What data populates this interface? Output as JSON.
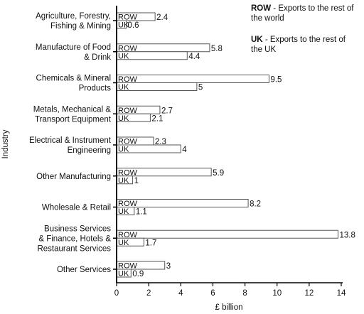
{
  "chart_data": {
    "type": "bar",
    "orientation": "horizontal",
    "categories": [
      [
        "Agriculture, Forestry,",
        "Fishing & Mining"
      ],
      [
        "Manufacture of Food",
        "& Drink"
      ],
      [
        "Chemicals & Mineral",
        "Products"
      ],
      [
        "Metals, Mechanical &",
        "Transport Equipment"
      ],
      [
        "Electrical & Instrument",
        "Engineering"
      ],
      [
        "Other Manufacturing"
      ],
      [
        "Wholesale & Retail"
      ],
      [
        "Business Services",
        "& Finance, Hotels &",
        "Restaurant Services"
      ],
      [
        "Other Services"
      ]
    ],
    "series": [
      {
        "name": "ROW",
        "values": [
          2.4,
          5.8,
          9.5,
          2.7,
          2.3,
          5.9,
          8.2,
          13.8,
          3
        ],
        "labels": [
          "2.4",
          "5.8",
          "9.5",
          "2.7",
          "2.3",
          "5.9",
          "8.2",
          "13.8",
          "3"
        ]
      },
      {
        "name": "UK",
        "values": [
          0.6,
          4.4,
          5,
          2.1,
          4,
          1,
          1.1,
          1.7,
          0.9
        ],
        "labels": [
          "0.6",
          "4.4",
          "5",
          "2.1",
          "4",
          "1",
          "1.1",
          "1.7",
          "0.9"
        ]
      }
    ],
    "xlabel": "£ billion",
    "ylabel": "Industry",
    "xlim": [
      0,
      14
    ],
    "xticks": [
      "0",
      "2",
      "4",
      "6",
      "8",
      "10",
      "12",
      "14"
    ],
    "grid": false,
    "legend": {
      "placement": "top-right",
      "entries": [
        {
          "key": "ROW",
          "desc": " - Exports to the rest of",
          "desc2": "the world"
        },
        {
          "key": "UK",
          "desc": " - Exports to the rest of",
          "desc2": "the UK"
        }
      ]
    },
    "colors": {
      "bar_fill": "#ffffff",
      "bar_stroke": "#555555",
      "axis": "#000000"
    }
  }
}
